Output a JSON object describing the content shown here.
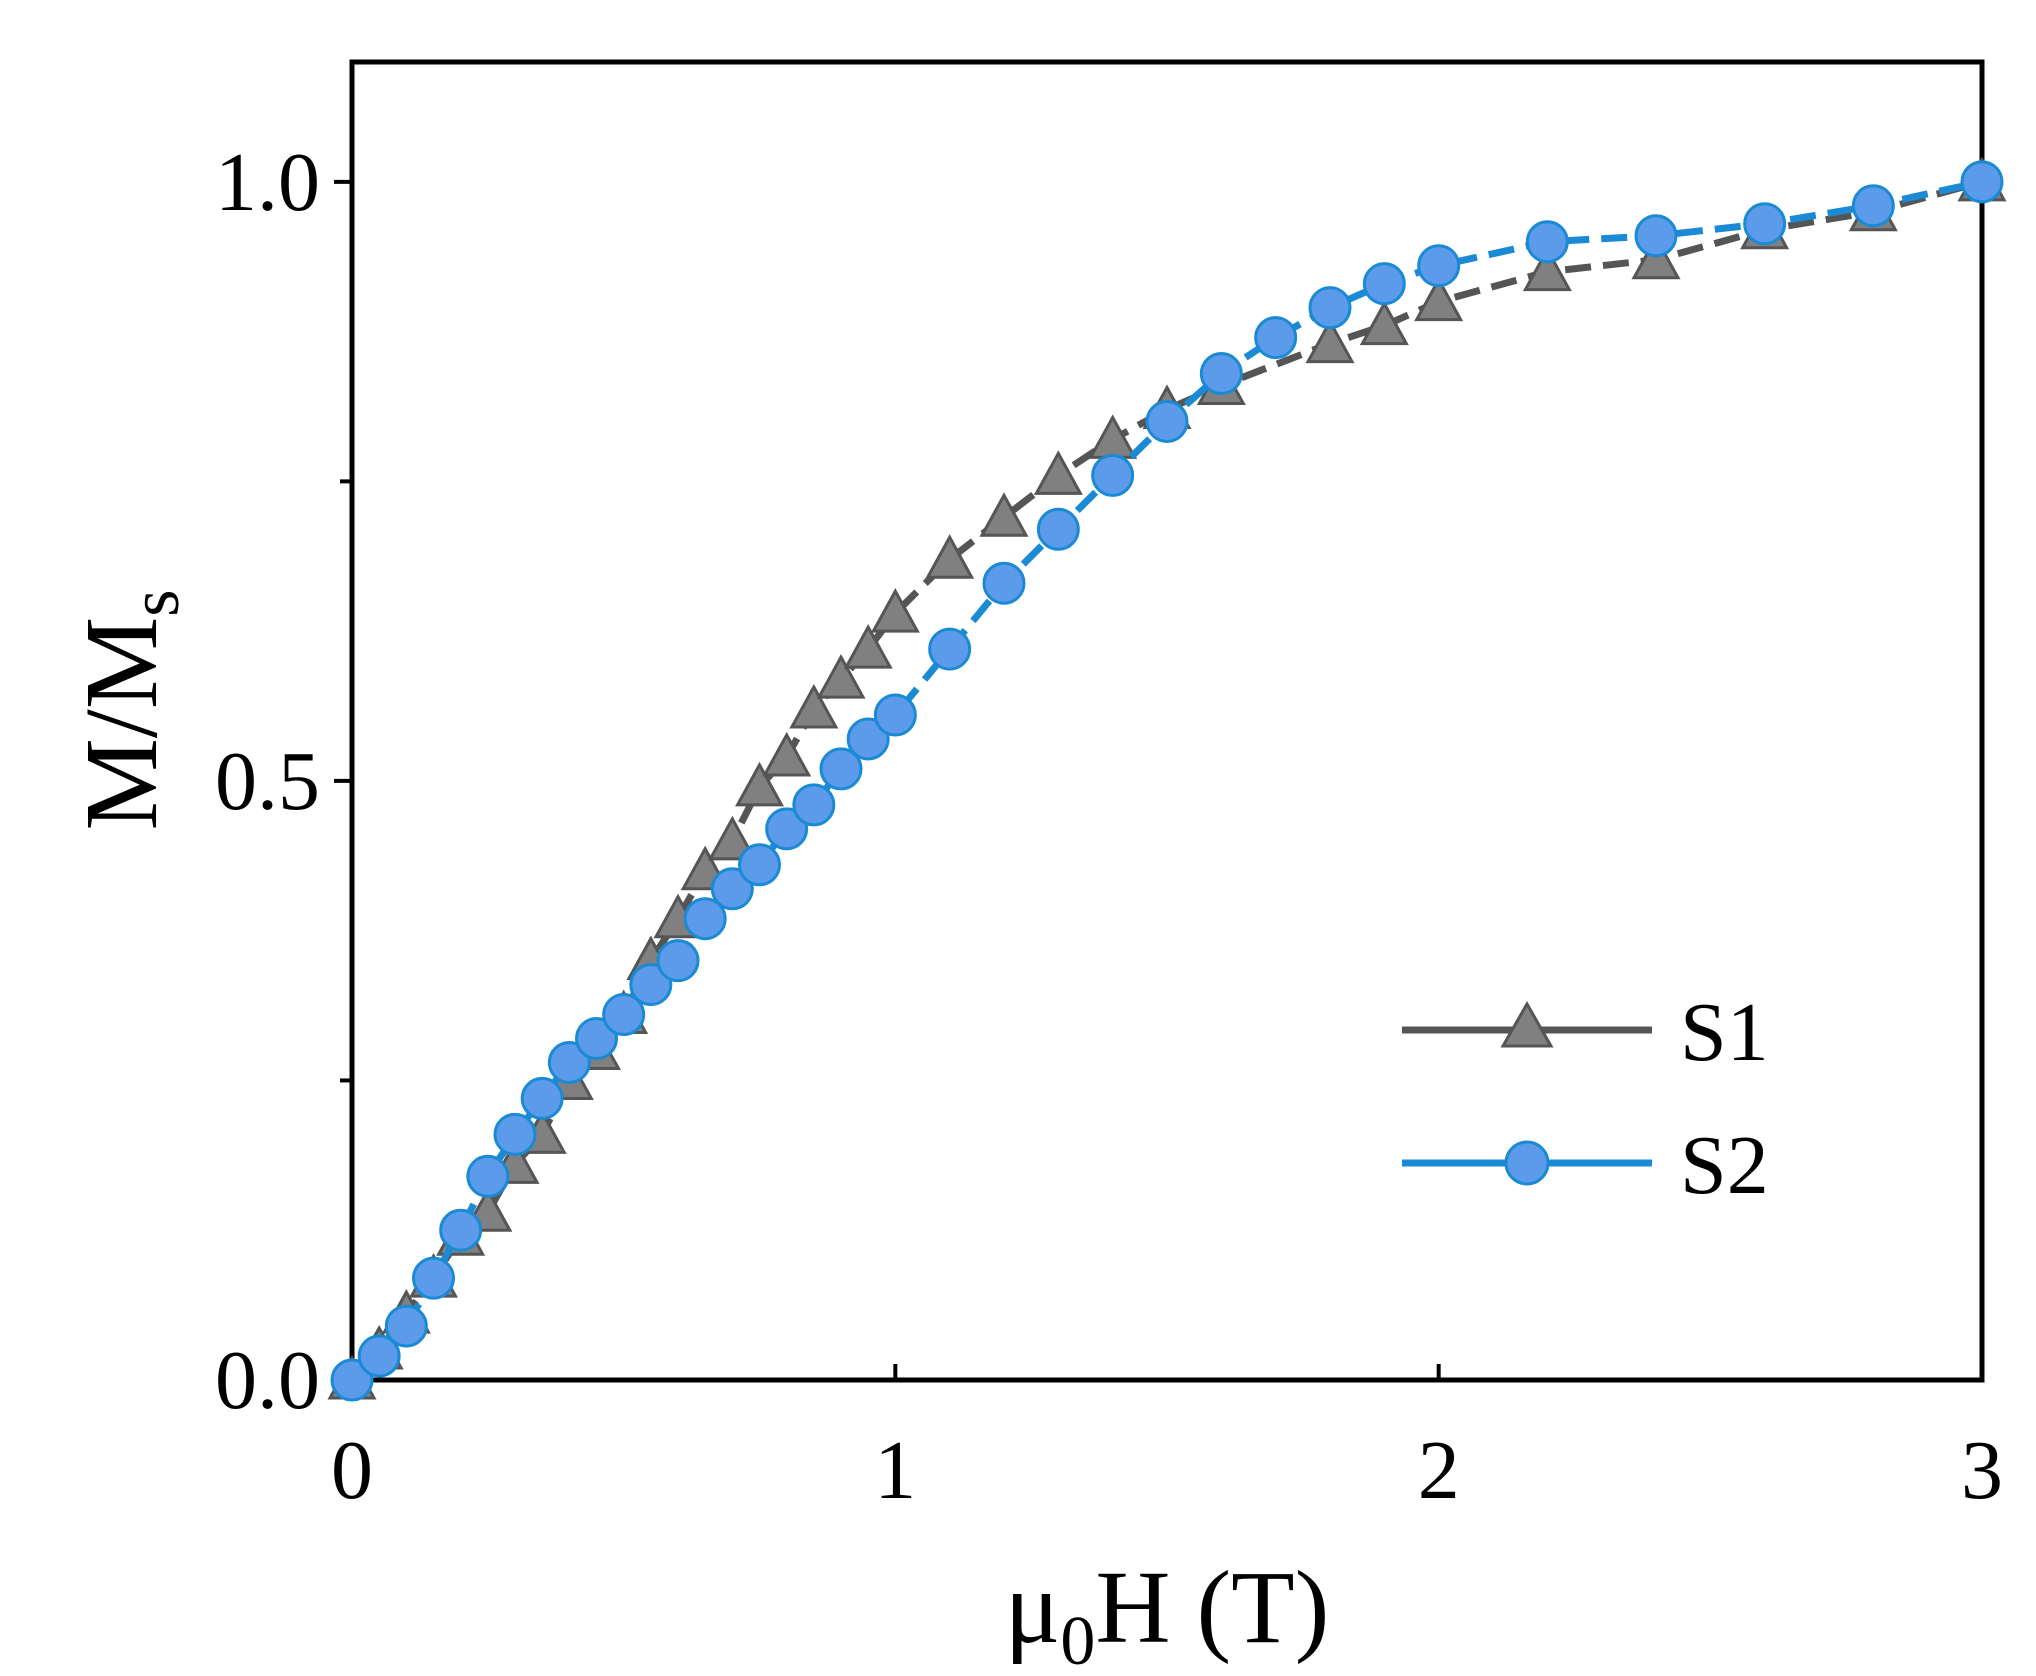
{
  "chart_data": {
    "type": "line",
    "title": "",
    "xlabel_main": "μ",
    "xlabel_sub": "0",
    "xlabel_rest": "H (T)",
    "ylabel_main": "M/M",
    "ylabel_sub": "s",
    "xlim": [
      0,
      3
    ],
    "ylim": [
      0,
      1.1
    ],
    "xticks": [
      0,
      1,
      2,
      3
    ],
    "xtick_labels": [
      "0",
      "1",
      "2",
      "3"
    ],
    "yticks_major": [
      0,
      0.5,
      1.0
    ],
    "ytick_labels": [
      "0.0",
      "0.5",
      "1.0"
    ],
    "yticks_minor": [
      0.25,
      0.75
    ],
    "grid": false,
    "legend_position": "lower-right",
    "series": [
      {
        "name": "S1",
        "color": "#555555",
        "marker": "triangle",
        "marker_fill": "#808080",
        "marker_edge": "#555555",
        "line_style": "dashed",
        "x": [
          0,
          0.05,
          0.1,
          0.15,
          0.2,
          0.25,
          0.3,
          0.35,
          0.4,
          0.45,
          0.5,
          0.55,
          0.6,
          0.65,
          0.7,
          0.75,
          0.8,
          0.85,
          0.9,
          0.95,
          1.0,
          1.1,
          1.2,
          1.3,
          1.4,
          1.5,
          1.6,
          1.8,
          1.9,
          2.0,
          2.2,
          2.4,
          2.6,
          2.8,
          3.0
        ],
        "y": [
          0.0,
          0.025,
          0.055,
          0.085,
          0.12,
          0.14,
          0.18,
          0.205,
          0.25,
          0.275,
          0.305,
          0.35,
          0.385,
          0.425,
          0.45,
          0.495,
          0.52,
          0.56,
          0.585,
          0.61,
          0.64,
          0.685,
          0.72,
          0.755,
          0.785,
          0.81,
          0.83,
          0.865,
          0.88,
          0.9,
          0.925,
          0.935,
          0.96,
          0.975,
          1.0
        ]
      },
      {
        "name": "S2",
        "color": "#1a8ad4",
        "marker": "circle",
        "marker_fill": "#5b9bea",
        "marker_edge": "#1a8ad4",
        "line_style": "dashed",
        "x": [
          0,
          0.05,
          0.1,
          0.15,
          0.2,
          0.25,
          0.3,
          0.35,
          0.4,
          0.45,
          0.5,
          0.55,
          0.6,
          0.65,
          0.7,
          0.75,
          0.8,
          0.85,
          0.9,
          0.95,
          1.0,
          1.1,
          1.2,
          1.3,
          1.4,
          1.5,
          1.6,
          1.7,
          1.8,
          1.9,
          2.0,
          2.2,
          2.4,
          2.6,
          2.8,
          3.0
        ],
        "y": [
          0.0,
          0.02,
          0.045,
          0.085,
          0.125,
          0.17,
          0.205,
          0.235,
          0.265,
          0.285,
          0.305,
          0.33,
          0.35,
          0.385,
          0.41,
          0.43,
          0.46,
          0.48,
          0.51,
          0.535,
          0.555,
          0.61,
          0.665,
          0.71,
          0.755,
          0.8,
          0.84,
          0.87,
          0.895,
          0.915,
          0.93,
          0.95,
          0.955,
          0.965,
          0.98,
          1.0
        ]
      }
    ]
  }
}
